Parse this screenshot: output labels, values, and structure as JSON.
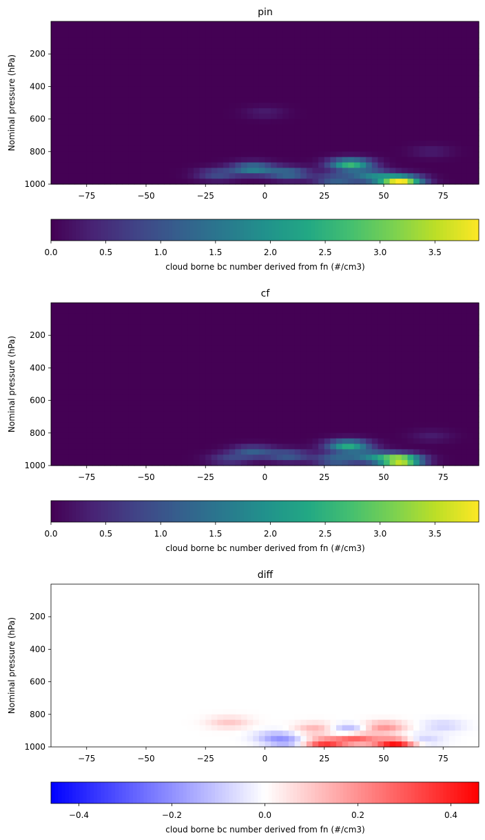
{
  "chart_data": [
    {
      "type": "heatmap",
      "title": "pin",
      "xlabel": "",
      "ylabel": "Nominal pressure (hPa)",
      "xlim": [
        -90,
        90
      ],
      "ylim": [
        1000,
        0
      ],
      "x_ticks": [
        -75,
        -50,
        -25,
        0,
        25,
        50,
        75
      ],
      "x_tick_labels": [
        "−75",
        "−50",
        "−25",
        "0",
        "25",
        "50",
        "75"
      ],
      "y_ticks": [
        200,
        400,
        600,
        800,
        1000
      ],
      "y_tick_labels": [
        "200",
        "400",
        "600",
        "800",
        "1000"
      ],
      "colormap": "viridis",
      "colorbar": {
        "label": "cloud borne bc number derived from fn (#/cm3)",
        "range": [
          0,
          3.9
        ],
        "ticks": [
          0,
          0.5,
          1,
          1.5,
          2,
          2.5,
          3,
          3.5
        ],
        "tick_labels": [
          "0.0",
          "0.5",
          "1.0",
          "1.5",
          "2.0",
          "2.5",
          "3.0",
          "3.5"
        ]
      },
      "features": [
        {
          "lat": 57,
          "p": 985,
          "value": 3.9
        },
        {
          "lat": 36,
          "p": 880,
          "value": 2.6
        },
        {
          "lat": -5,
          "p": 905,
          "value": 1.7
        },
        {
          "lat": 10,
          "p": 935,
          "value": 1.4
        },
        {
          "lat": 30,
          "p": 975,
          "value": 1.2
        },
        {
          "lat": 45,
          "p": 950,
          "value": 1.5
        },
        {
          "lat": -20,
          "p": 940,
          "value": 0.9
        },
        {
          "lat": 0,
          "p": 560,
          "value": 0.3
        },
        {
          "lat": 70,
          "p": 800,
          "value": 0.3
        }
      ]
    },
    {
      "type": "heatmap",
      "title": "cf",
      "xlabel": "",
      "ylabel": "Nominal pressure (hPa)",
      "xlim": [
        -90,
        90
      ],
      "ylim": [
        1000,
        0
      ],
      "x_ticks": [
        -75,
        -50,
        -25,
        0,
        25,
        50,
        75
      ],
      "x_tick_labels": [
        "−75",
        "−50",
        "−25",
        "0",
        "25",
        "50",
        "75"
      ],
      "y_ticks": [
        200,
        400,
        600,
        800,
        1000
      ],
      "y_tick_labels": [
        "200",
        "400",
        "600",
        "800",
        "1000"
      ],
      "colormap": "viridis",
      "colorbar": {
        "label": "cloud borne bc number derived from fn (#/cm3)",
        "range": [
          0,
          3.9
        ],
        "ticks": [
          0,
          0.5,
          1,
          1.5,
          2,
          2.5,
          3,
          3.5
        ],
        "tick_labels": [
          "0.0",
          "0.5",
          "1.0",
          "1.5",
          "2.0",
          "2.5",
          "3.0",
          "3.5"
        ]
      },
      "features": [
        {
          "lat": 57,
          "p": 970,
          "value": 3.9
        },
        {
          "lat": 35,
          "p": 880,
          "value": 2.4
        },
        {
          "lat": -5,
          "p": 915,
          "value": 1.1
        },
        {
          "lat": 10,
          "p": 940,
          "value": 1.1
        },
        {
          "lat": 30,
          "p": 965,
          "value": 1.3
        },
        {
          "lat": 45,
          "p": 945,
          "value": 1.4
        },
        {
          "lat": -15,
          "p": 960,
          "value": 0.7
        },
        {
          "lat": 70,
          "p": 820,
          "value": 0.3
        }
      ]
    },
    {
      "type": "heatmap",
      "title": "diff",
      "xlabel": "",
      "ylabel": "Nominal pressure (hPa)",
      "xlim": [
        -90,
        90
      ],
      "ylim": [
        1000,
        0
      ],
      "x_ticks": [
        -75,
        -50,
        -25,
        0,
        25,
        50,
        75
      ],
      "x_tick_labels": [
        "−75",
        "−50",
        "−25",
        "0",
        "25",
        "50",
        "75"
      ],
      "y_ticks": [
        200,
        400,
        600,
        800,
        1000
      ],
      "y_tick_labels": [
        "200",
        "400",
        "600",
        "800",
        "1000"
      ],
      "colormap": "bwr",
      "colorbar": {
        "label": "cloud borne bc number derived from fn (#/cm3)",
        "range": [
          -0.46,
          0.46
        ],
        "ticks": [
          -0.4,
          -0.2,
          0,
          0.2,
          0.4
        ],
        "tick_labels": [
          "−0.4",
          "−0.2",
          "0.0",
          "0.2",
          "0.4"
        ]
      },
      "features": [
        {
          "lat": 55,
          "p": 985,
          "value": 0.45
        },
        {
          "lat": 25,
          "p": 985,
          "value": 0.35
        },
        {
          "lat": 38,
          "p": 945,
          "value": 0.3
        },
        {
          "lat": 50,
          "p": 880,
          "value": 0.2
        },
        {
          "lat": 22,
          "p": 890,
          "value": 0.15
        },
        {
          "lat": -15,
          "p": 850,
          "value": 0.1
        },
        {
          "lat": 35,
          "p": 900,
          "value": -0.2
        },
        {
          "lat": 5,
          "p": 940,
          "value": -0.15
        },
        {
          "lat": 10,
          "p": 975,
          "value": -0.12
        },
        {
          "lat": 75,
          "p": 870,
          "value": -0.08
        },
        {
          "lat": 65,
          "p": 960,
          "value": -0.12
        }
      ]
    }
  ]
}
